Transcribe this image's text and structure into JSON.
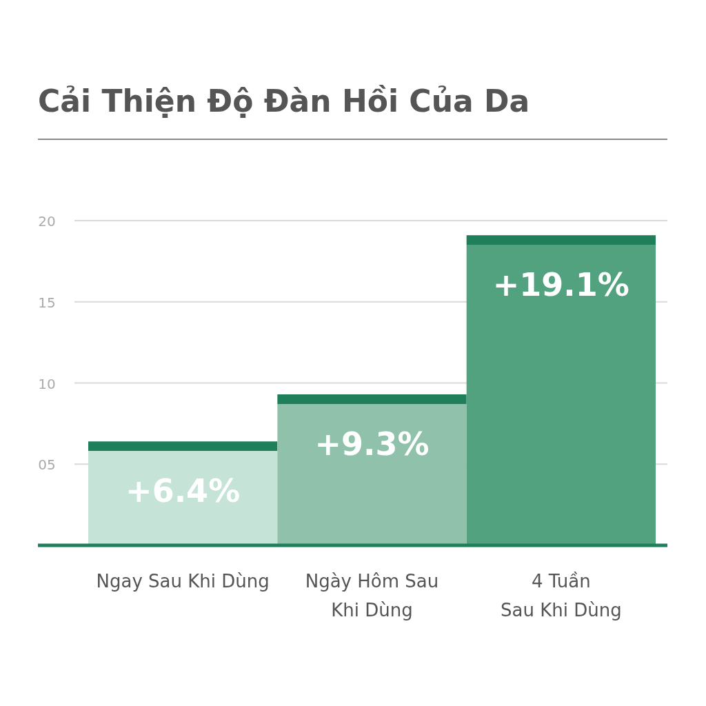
{
  "chart_data": {
    "type": "bar",
    "title": "Cải Thiện Độ Đàn Hồi Của Da",
    "categories": [
      "Ngay Sau Khi Dùng",
      "Ngày Hôm Sau\nKhi Dùng",
      "4 Tuần\nSau Khi Dùng"
    ],
    "values": [
      6.4,
      9.3,
      19.1
    ],
    "colors": [
      "#c5e3d7",
      "#8fc1ab",
      "#52a17f"
    ],
    "value_labels": [
      "+6.4%",
      "+9.3%",
      "+19.1%"
    ],
    "ylim": [
      0,
      20
    ],
    "yticks": [
      {
        "value": 5,
        "label": "05"
      },
      10,
      15,
      20
    ],
    "grid": "y"
  }
}
